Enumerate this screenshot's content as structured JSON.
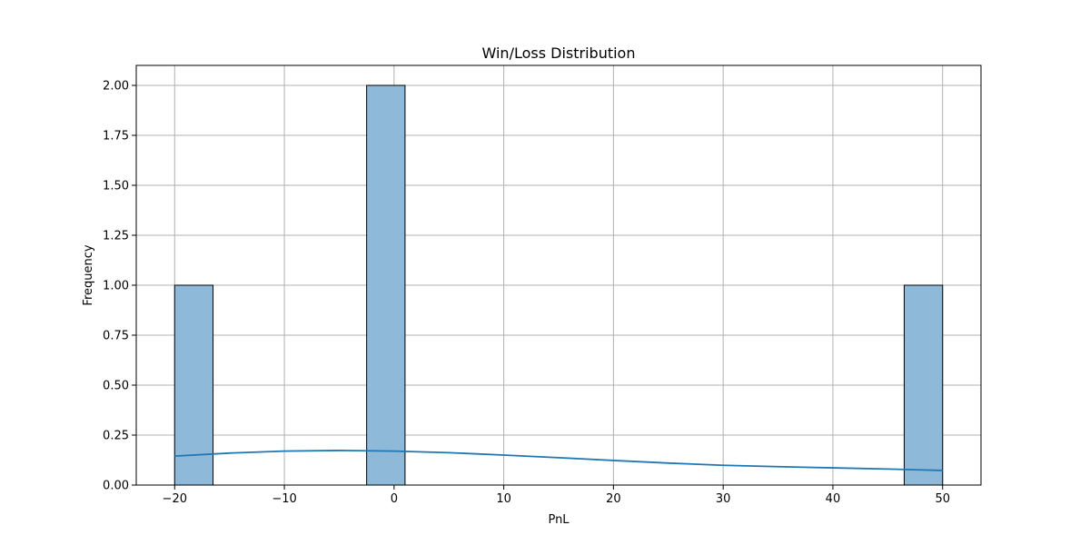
{
  "chart_data": {
    "type": "bar",
    "title": "Win/Loss Distribution",
    "xlabel": "PnL",
    "ylabel": "Frequency",
    "xlim": [
      -23.5,
      53.5
    ],
    "ylim": [
      0,
      2.1
    ],
    "xticks": [
      -20,
      -10,
      0,
      10,
      20,
      30,
      40,
      50
    ],
    "xtick_labels": [
      "−20",
      "−10",
      "0",
      "10",
      "20",
      "30",
      "40",
      "50"
    ],
    "yticks": [
      0,
      0.25,
      0.5,
      0.75,
      1.0,
      1.25,
      1.5,
      1.75,
      2.0
    ],
    "ytick_labels": [
      "0.00",
      "0.25",
      "0.50",
      "0.75",
      "1.00",
      "1.25",
      "1.50",
      "1.75",
      "2.00"
    ],
    "grid": true,
    "bins": [
      {
        "start": -20.0,
        "end": -16.5,
        "count": 1
      },
      {
        "start": -2.5,
        "end": 1.0,
        "count": 2
      },
      {
        "start": 46.5,
        "end": 50.0,
        "count": 1
      }
    ],
    "kde": {
      "x": [
        -20,
        -15,
        -10,
        -5,
        0,
        5,
        10,
        15,
        20,
        25,
        30,
        35,
        40,
        45,
        50
      ],
      "y": [
        0.145,
        0.16,
        0.17,
        0.173,
        0.17,
        0.162,
        0.15,
        0.137,
        0.123,
        0.11,
        0.099,
        0.092,
        0.086,
        0.08,
        0.073
      ]
    },
    "colors": {
      "bar_fill": "#8fb9d9",
      "bar_edge": "#000000",
      "kde_line": "#1f77b4",
      "grid": "#b0b0b0"
    }
  }
}
